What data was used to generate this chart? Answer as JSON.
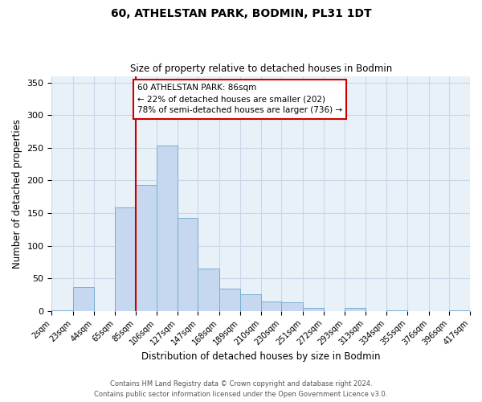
{
  "title": "60, ATHELSTAN PARK, BODMIN, PL31 1DT",
  "subtitle": "Size of property relative to detached houses in Bodmin",
  "xlabel": "Distribution of detached houses by size in Bodmin",
  "ylabel": "Number of detached properties",
  "bin_labels": [
    "2sqm",
    "23sqm",
    "44sqm",
    "65sqm",
    "85sqm",
    "106sqm",
    "127sqm",
    "147sqm",
    "168sqm",
    "189sqm",
    "210sqm",
    "230sqm",
    "251sqm",
    "272sqm",
    "293sqm",
    "313sqm",
    "334sqm",
    "355sqm",
    "376sqm",
    "396sqm",
    "417sqm"
  ],
  "bar_values": [
    1,
    37,
    0,
    158,
    193,
    254,
    142,
    65,
    34,
    25,
    15,
    13,
    5,
    0,
    5,
    0,
    1,
    0,
    0,
    1
  ],
  "bin_edges": [
    2,
    23,
    44,
    65,
    85,
    106,
    127,
    147,
    168,
    189,
    210,
    230,
    251,
    272,
    293,
    313,
    334,
    355,
    376,
    396,
    417
  ],
  "bar_color": "#c5d8f0",
  "bar_edge_color": "#7aadd4",
  "property_line_x": 85,
  "property_line_color": "#cc0000",
  "annotation_line1": "60 ATHELSTAN PARK: 86sqm",
  "annotation_line2": "← 22% of detached houses are smaller (202)",
  "annotation_line3": "78% of semi-detached houses are larger (736) →",
  "annotation_box_color": "#ffffff",
  "annotation_box_edge": "#cc0000",
  "ylim": [
    0,
    360
  ],
  "yticks": [
    0,
    50,
    100,
    150,
    200,
    250,
    300,
    350
  ],
  "grid_color": "#c8d8e8",
  "background_color": "#e8f0f8",
  "footer_line1": "Contains HM Land Registry data © Crown copyright and database right 2024.",
  "footer_line2": "Contains public sector information licensed under the Open Government Licence v3.0."
}
